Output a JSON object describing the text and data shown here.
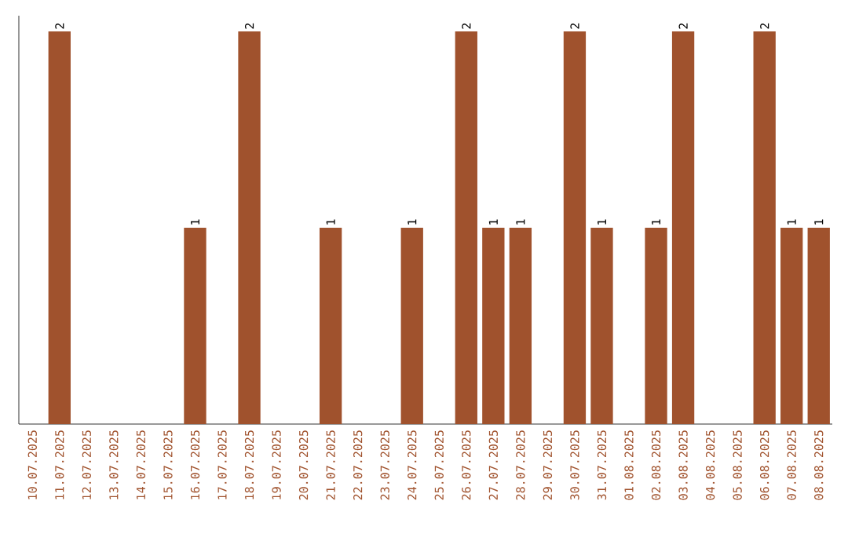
{
  "chart_data": {
    "type": "bar",
    "categories": [
      "10.07.2025",
      "11.07.2025",
      "12.07.2025",
      "13.07.2025",
      "14.07.2025",
      "15.07.2025",
      "16.07.2025",
      "17.07.2025",
      "18.07.2025",
      "19.07.2025",
      "20.07.2025",
      "21.07.2025",
      "22.07.2025",
      "23.07.2025",
      "24.07.2025",
      "25.07.2025",
      "26.07.2025",
      "27.07.2025",
      "28.07.2025",
      "29.07.2025",
      "30.07.2025",
      "31.07.2025",
      "01.08.2025",
      "02.08.2025",
      "03.08.2025",
      "04.08.2025",
      "05.08.2025",
      "06.08.2025",
      "07.08.2025",
      "08.08.2025"
    ],
    "values": [
      0,
      2,
      0,
      0,
      0,
      0,
      1,
      0,
      2,
      0,
      0,
      1,
      0,
      0,
      1,
      0,
      2,
      1,
      1,
      0,
      2,
      1,
      0,
      1,
      2,
      0,
      0,
      2,
      1,
      1
    ],
    "value_labels": [
      null,
      "2",
      null,
      null,
      null,
      null,
      "1",
      null,
      "2",
      null,
      null,
      "1",
      null,
      null,
      "1",
      null,
      "2",
      "1",
      "1",
      null,
      "2",
      "1",
      null,
      "1",
      "2",
      null,
      null,
      "2",
      "1",
      "1"
    ],
    "color": "#a0522d",
    "tick_labels": "x"
  }
}
